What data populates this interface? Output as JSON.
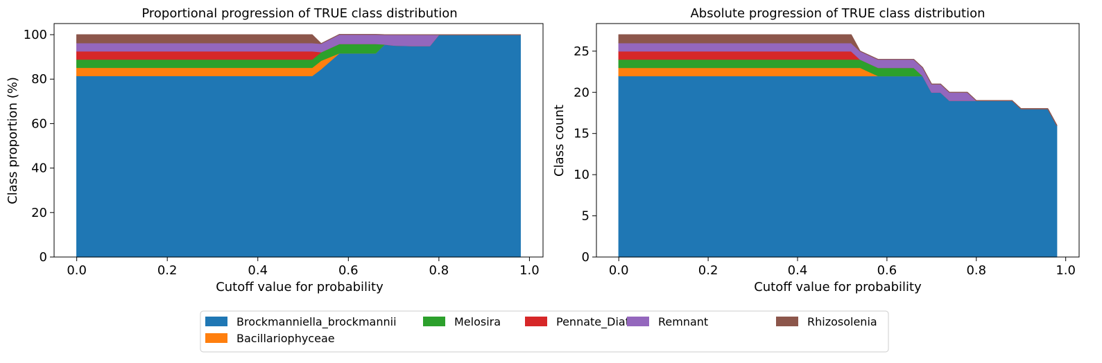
{
  "legend": {
    "placement": "bottom-center",
    "ncol": 5
  },
  "colors": {
    "Brockmanniella_brockmannii": "#1f77b4",
    "Bacillariophyceae": "#ff7f0e",
    "Melosira": "#2ca02c",
    "Pennate_Diatom": "#d62728",
    "Remnant": "#9467bd",
    "Rhizosolenia": "#8c564b"
  },
  "chart_data": [
    {
      "type": "area",
      "stacked": true,
      "title": "Proportional progression of TRUE class distribution",
      "xlabel": "Cutoff value for probability",
      "ylabel": "Class proportion (%)",
      "xlim": [
        -0.05,
        1.03
      ],
      "ylim": [
        0,
        105
      ],
      "xticks": [
        0.0,
        0.2,
        0.4,
        0.6,
        0.8,
        1.0
      ],
      "xtick_labels": [
        "0.0",
        "0.2",
        "0.4",
        "0.6",
        "0.8",
        "1.0"
      ],
      "yticks": [
        0,
        20,
        40,
        60,
        80,
        100
      ],
      "ytick_labels": [
        "0",
        "20",
        "40",
        "60",
        "80",
        "100"
      ],
      "x": [
        0.0,
        0.52,
        0.54,
        0.58,
        0.66,
        0.68,
        0.7,
        0.74,
        0.78,
        0.8,
        0.88,
        0.9,
        0.98
      ],
      "series": [
        {
          "name": "Brockmanniella_brockmannii",
          "values": [
            81.5,
            81.5,
            84.6,
            91.7,
            91.7,
            95.7,
            95.2,
            95.0,
            95.0,
            100,
            100,
            100,
            100
          ]
        },
        {
          "name": "Bacillariophyceae",
          "values": [
            3.7,
            3.7,
            3.8,
            0,
            0,
            0,
            0,
            0,
            0,
            0,
            0,
            0,
            0
          ]
        },
        {
          "name": "Melosira",
          "values": [
            3.7,
            3.7,
            3.8,
            4.2,
            4.2,
            0,
            0,
            0,
            0,
            0,
            0,
            0,
            0
          ]
        },
        {
          "name": "Pennate_Diatom",
          "values": [
            3.7,
            3.7,
            0,
            0,
            0,
            0,
            0,
            0,
            0,
            0,
            0,
            0,
            0
          ]
        },
        {
          "name": "Remnant",
          "values": [
            3.7,
            3.7,
            3.8,
            4.2,
            4.2,
            4.3,
            4.8,
            5.0,
            5.0,
            0,
            0,
            0,
            0
          ]
        },
        {
          "name": "Rhizosolenia",
          "values": [
            3.7,
            3.7,
            0,
            0,
            0,
            0,
            0,
            0,
            0,
            0,
            0,
            0,
            0
          ]
        }
      ]
    },
    {
      "type": "area",
      "stacked": true,
      "title": "Absolute progression of TRUE class distribution",
      "xlabel": "Cutoff value for probability",
      "ylabel": "Class count",
      "xlim": [
        -0.05,
        1.03
      ],
      "ylim": [
        0,
        28.35
      ],
      "xticks": [
        0.0,
        0.2,
        0.4,
        0.6,
        0.8,
        1.0
      ],
      "xtick_labels": [
        "0.0",
        "0.2",
        "0.4",
        "0.6",
        "0.8",
        "1.0"
      ],
      "yticks": [
        0,
        5,
        10,
        15,
        20,
        25
      ],
      "ytick_labels": [
        "0",
        "5",
        "10",
        "15",
        "20",
        "25"
      ],
      "x": [
        0.0,
        0.52,
        0.54,
        0.58,
        0.66,
        0.68,
        0.7,
        0.72,
        0.74,
        0.78,
        0.8,
        0.88,
        0.9,
        0.96,
        0.98
      ],
      "series": [
        {
          "name": "Brockmanniella_brockmannii",
          "values": [
            22,
            22,
            22,
            22,
            22,
            22,
            20,
            20,
            19,
            19,
            19,
            19,
            18,
            18,
            16
          ]
        },
        {
          "name": "Bacillariophyceae",
          "values": [
            1,
            1,
            1,
            0,
            0,
            0,
            0,
            0,
            0,
            0,
            0,
            0,
            0,
            0,
            0
          ]
        },
        {
          "name": "Melosira",
          "values": [
            1,
            1,
            1,
            1,
            1,
            0,
            0,
            0,
            0,
            0,
            0,
            0,
            0,
            0,
            0
          ]
        },
        {
          "name": "Pennate_Diatom",
          "values": [
            1,
            1,
            0,
            0,
            0,
            0,
            0,
            0,
            0,
            0,
            0,
            0,
            0,
            0,
            0
          ]
        },
        {
          "name": "Remnant",
          "values": [
            1,
            1,
            1,
            1,
            1,
            1,
            1,
            1,
            1,
            1,
            0,
            0,
            0,
            0,
            0
          ]
        },
        {
          "name": "Rhizosolenia",
          "values": [
            1,
            1,
            0,
            0,
            0,
            0,
            0,
            0,
            0,
            0,
            0,
            0,
            0,
            0,
            0
          ]
        }
      ]
    }
  ]
}
